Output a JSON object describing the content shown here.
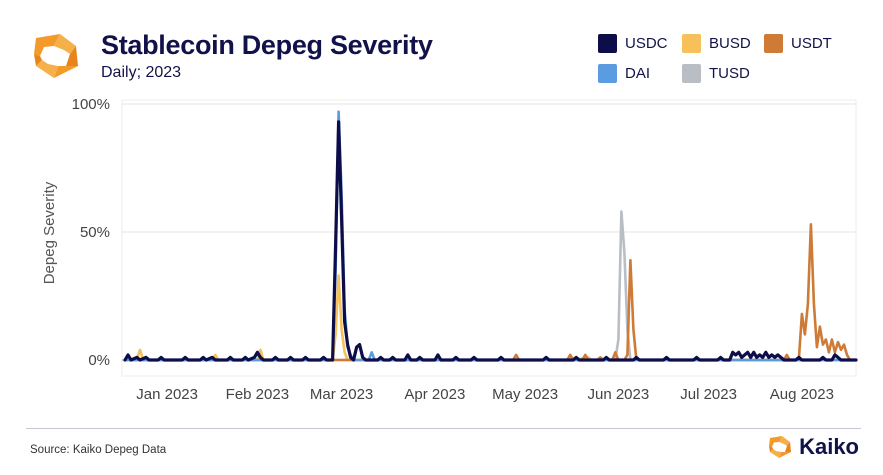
{
  "header": {
    "title": "Stablecoin Depeg Severity",
    "subtitle": "Daily; 2023"
  },
  "footer": {
    "source": "Source: Kaiko Depeg Data",
    "brand": "Kaiko"
  },
  "colors": {
    "USDC": "#0d0d4a",
    "BUSD": "#f6c05a",
    "USDT": "#cd7b37",
    "DAI": "#5b9be0",
    "TUSD": "#b9bdc4",
    "brand_orange": "#f39a2a"
  },
  "legend": [
    "USDC",
    "BUSD",
    "USDT",
    "DAI",
    "TUSD"
  ],
  "chart_data": {
    "type": "line",
    "title": "Stablecoin Depeg Severity",
    "subtitle": "Daily; 2023",
    "xlabel": "",
    "ylabel": "Depeg Severity",
    "ylim": [
      0,
      100
    ],
    "yticks": [
      0,
      50,
      100
    ],
    "ytick_labels": [
      "0%",
      "50%",
      "100%"
    ],
    "xlim": [
      0,
      244
    ],
    "xticks": [
      {
        "day": 15,
        "label": "Jan 2023"
      },
      {
        "day": 45,
        "label": "Feb 2023"
      },
      {
        "day": 73,
        "label": "Mar 2023"
      },
      {
        "day": 104,
        "label": "Apr 2023"
      },
      {
        "day": 134,
        "label": "May 2023"
      },
      {
        "day": 165,
        "label": "Jun 2023"
      },
      {
        "day": 195,
        "label": "Jul 2023"
      },
      {
        "day": 226,
        "label": "Aug 2023"
      }
    ],
    "x_unit": "day of year 2023",
    "series": [
      {
        "name": "BUSD",
        "color": "#f6c05a",
        "points": [
          [
            1,
            0
          ],
          [
            5,
            0.5
          ],
          [
            6,
            4
          ],
          [
            7,
            0
          ],
          [
            30,
            0
          ],
          [
            31,
            2
          ],
          [
            32,
            0
          ],
          [
            45,
            0
          ],
          [
            46,
            4
          ],
          [
            47,
            0
          ],
          [
            70,
            0
          ],
          [
            71,
            10
          ],
          [
            72,
            33
          ],
          [
            73,
            12
          ],
          [
            74,
            3
          ],
          [
            75,
            0
          ],
          [
            140,
            0
          ],
          [
            150,
            0
          ],
          [
            155,
            1
          ],
          [
            156,
            0
          ],
          [
            244,
            0
          ]
        ]
      },
      {
        "name": "TUSD",
        "color": "#b9bdc4",
        "points": [
          [
            1,
            0
          ],
          [
            164,
            0
          ],
          [
            165,
            8
          ],
          [
            166,
            58
          ],
          [
            167,
            42
          ],
          [
            168,
            12
          ],
          [
            169,
            0
          ],
          [
            244,
            0
          ]
        ]
      },
      {
        "name": "USDT",
        "color": "#cd7b37",
        "points": [
          [
            1,
            0
          ],
          [
            130,
            0
          ],
          [
            131,
            2
          ],
          [
            132,
            0
          ],
          [
            148,
            0
          ],
          [
            149,
            2
          ],
          [
            150,
            0
          ],
          [
            153,
            0
          ],
          [
            154,
            2
          ],
          [
            155,
            0
          ],
          [
            158,
            0
          ],
          [
            159,
            1
          ],
          [
            160,
            0
          ],
          [
            163,
            0
          ],
          [
            164,
            3
          ],
          [
            165,
            0
          ],
          [
            167,
            0
          ],
          [
            168,
            2
          ],
          [
            169,
            39
          ],
          [
            170,
            12
          ],
          [
            171,
            0
          ],
          [
            220,
            0
          ],
          [
            221,
            2
          ],
          [
            222,
            0
          ],
          [
            225,
            0
          ],
          [
            226,
            18
          ],
          [
            227,
            10
          ],
          [
            228,
            22
          ],
          [
            229,
            53
          ],
          [
            230,
            22
          ],
          [
            231,
            5
          ],
          [
            232,
            13
          ],
          [
            233,
            6
          ],
          [
            234,
            8
          ],
          [
            235,
            3
          ],
          [
            236,
            8
          ],
          [
            237,
            3
          ],
          [
            238,
            7
          ],
          [
            239,
            4
          ],
          [
            240,
            6
          ],
          [
            241,
            2
          ],
          [
            242,
            0
          ],
          [
            244,
            0
          ]
        ]
      },
      {
        "name": "DAI",
        "color": "#5b9be0",
        "points": [
          [
            1,
            0
          ],
          [
            70,
            0
          ],
          [
            71,
            35
          ],
          [
            72,
            97
          ],
          [
            73,
            65
          ],
          [
            74,
            20
          ],
          [
            75,
            5
          ],
          [
            76,
            2
          ],
          [
            77,
            0
          ],
          [
            82,
            0
          ],
          [
            83,
            3
          ],
          [
            84,
            0
          ],
          [
            244,
            0
          ]
        ]
      },
      {
        "name": "USDC",
        "color": "#0d0d4a",
        "points": [
          [
            1,
            0
          ],
          [
            2,
            2
          ],
          [
            3,
            0
          ],
          [
            5,
            1
          ],
          [
            6,
            0
          ],
          [
            8,
            1
          ],
          [
            9,
            0
          ],
          [
            12,
            0
          ],
          [
            13,
            1
          ],
          [
            14,
            0
          ],
          [
            20,
            0
          ],
          [
            21,
            1
          ],
          [
            22,
            0
          ],
          [
            26,
            0
          ],
          [
            27,
            1
          ],
          [
            28,
            0
          ],
          [
            30,
            1
          ],
          [
            31,
            0
          ],
          [
            35,
            0
          ],
          [
            36,
            1
          ],
          [
            37,
            0
          ],
          [
            40,
            0
          ],
          [
            41,
            1
          ],
          [
            42,
            0
          ],
          [
            44,
            1
          ],
          [
            45,
            3
          ],
          [
            46,
            1
          ],
          [
            47,
            0
          ],
          [
            50,
            0
          ],
          [
            51,
            1
          ],
          [
            52,
            0
          ],
          [
            55,
            0
          ],
          [
            56,
            1
          ],
          [
            57,
            0
          ],
          [
            60,
            0
          ],
          [
            61,
            1
          ],
          [
            62,
            0
          ],
          [
            66,
            0
          ],
          [
            67,
            1
          ],
          [
            68,
            0
          ],
          [
            70,
            0
          ],
          [
            71,
            45
          ],
          [
            72,
            93
          ],
          [
            73,
            55
          ],
          [
            74,
            15
          ],
          [
            75,
            6
          ],
          [
            76,
            1
          ],
          [
            77,
            0
          ],
          [
            78,
            5
          ],
          [
            79,
            6
          ],
          [
            80,
            1
          ],
          [
            81,
            0
          ],
          [
            85,
            0
          ],
          [
            86,
            1
          ],
          [
            87,
            0
          ],
          [
            89,
            0
          ],
          [
            90,
            1
          ],
          [
            91,
            0
          ],
          [
            94,
            0
          ],
          [
            95,
            2
          ],
          [
            96,
            0
          ],
          [
            98,
            0
          ],
          [
            99,
            1
          ],
          [
            100,
            0
          ],
          [
            104,
            0
          ],
          [
            105,
            2
          ],
          [
            106,
            0
          ],
          [
            110,
            0
          ],
          [
            111,
            1
          ],
          [
            112,
            0
          ],
          [
            116,
            0
          ],
          [
            117,
            1
          ],
          [
            118,
            0
          ],
          [
            125,
            0
          ],
          [
            126,
            1
          ],
          [
            127,
            0
          ],
          [
            140,
            0
          ],
          [
            141,
            1
          ],
          [
            142,
            0
          ],
          [
            150,
            0
          ],
          [
            151,
            1
          ],
          [
            152,
            0
          ],
          [
            160,
            0
          ],
          [
            161,
            1
          ],
          [
            162,
            0
          ],
          [
            170,
            0
          ],
          [
            171,
            1
          ],
          [
            172,
            0
          ],
          [
            180,
            0
          ],
          [
            181,
            1
          ],
          [
            182,
            0
          ],
          [
            190,
            0
          ],
          [
            191,
            1
          ],
          [
            192,
            0
          ],
          [
            198,
            0
          ],
          [
            199,
            1
          ],
          [
            200,
            0
          ],
          [
            202,
            0
          ],
          [
            203,
            3
          ],
          [
            204,
            2
          ],
          [
            205,
            3
          ],
          [
            206,
            1
          ],
          [
            207,
            2
          ],
          [
            208,
            3
          ],
          [
            209,
            1
          ],
          [
            210,
            3
          ],
          [
            211,
            1
          ],
          [
            212,
            2
          ],
          [
            213,
            1
          ],
          [
            214,
            3
          ],
          [
            215,
            1
          ],
          [
            216,
            2
          ],
          [
            217,
            1
          ],
          [
            218,
            2
          ],
          [
            219,
            1
          ],
          [
            220,
            0
          ],
          [
            224,
            0
          ],
          [
            225,
            1
          ],
          [
            226,
            0
          ],
          [
            232,
            0
          ],
          [
            233,
            1
          ],
          [
            234,
            0
          ],
          [
            236,
            0
          ],
          [
            237,
            2
          ],
          [
            238,
            1
          ],
          [
            239,
            0
          ],
          [
            241,
            0
          ],
          [
            242,
            0
          ],
          [
            244,
            0
          ]
        ]
      }
    ]
  }
}
